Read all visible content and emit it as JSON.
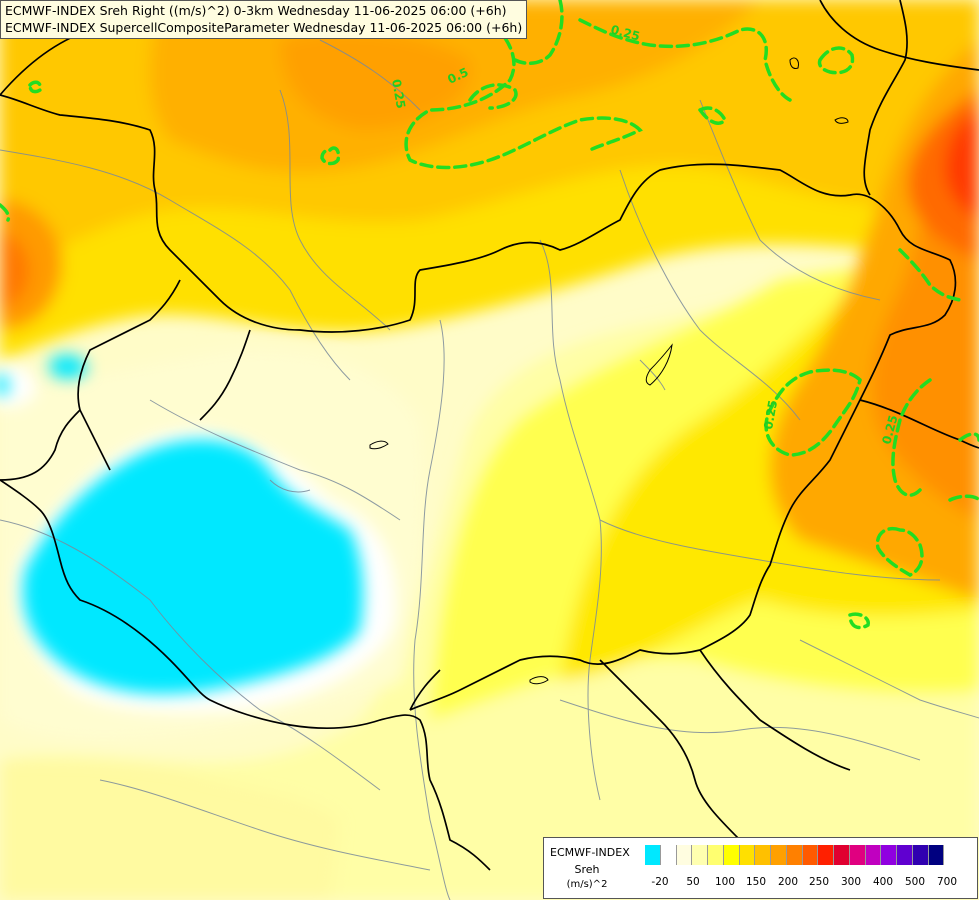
{
  "header": {
    "line1": "ECMWF-INDEX Sreh Right ((m/s)^2) 0-3km Wednesday 11-06-2025 06:00 (+6h)",
    "line2": "ECMWF-INDEX SupercellCompositeParameter Wednesday 11-06-2025 06:00 (+6h)"
  },
  "contour_labels": [
    "0.25",
    "0.5",
    "0.25",
    "0.25",
    "0.25"
  ],
  "legend": {
    "model": "ECMWF-INDEX",
    "variable": "Sreh",
    "unit": "(m/s)^2",
    "colors": [
      "#00e8ff",
      "#ffffff",
      "#fffde0",
      "#ffffb0",
      "#ffff70",
      "#ffff00",
      "#ffe000",
      "#ffc000",
      "#ffa000",
      "#ff8000",
      "#ff5a00",
      "#ff2000",
      "#e00030",
      "#e00080",
      "#c000c0",
      "#9000e0",
      "#6000d0",
      "#3000b0",
      "#000080"
    ],
    "ticks": [
      "-20",
      "50",
      "100",
      "150",
      "200",
      "250",
      "300",
      "400",
      "500",
      "700"
    ]
  },
  "colors": {
    "contour": "#22dd22",
    "border": "#000000",
    "river": "#7a8a9a"
  }
}
